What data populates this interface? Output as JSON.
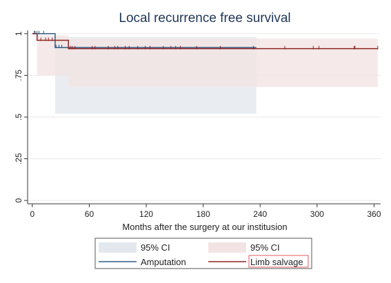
{
  "chart_data": {
    "type": "line",
    "title": "Local recurrence free survival",
    "xlabel": "Months after the surgery at our institusion",
    "ylabel": "",
    "xlim": [
      -5,
      367
    ],
    "ylim": [
      -0.02,
      1.02
    ],
    "x_ticks": [
      0,
      60,
      120,
      180,
      240,
      300,
      360
    ],
    "y_ticks": [
      0,
      0.25,
      0.5,
      0.75,
      1
    ],
    "y_tick_labels": [
      "0",
      ".25",
      ".5",
      ".75",
      "1"
    ],
    "grid": true,
    "legend_position": "bottom",
    "legend": [
      {
        "label": "95% CI",
        "kind": "band",
        "series": "Amputation"
      },
      {
        "label": "95% CI",
        "kind": "band",
        "series": "Limb salvage"
      },
      {
        "label": "Amputation",
        "kind": "line",
        "series": "Amputation"
      },
      {
        "label": "Limb salvage",
        "kind": "line",
        "series": "Limb salvage"
      }
    ],
    "series": [
      {
        "name": "Amputation",
        "color": "#2f5b86",
        "ci_color": "#e3e8ee",
        "steps": [
          [
            0,
            1
          ],
          [
            24,
            1
          ],
          [
            24,
            0.917
          ],
          [
            236,
            0.917
          ]
        ],
        "ci": [
          [
            0,
            1,
            1
          ],
          [
            24,
            1,
            1
          ],
          [
            24,
            0.52,
            0.98
          ],
          [
            236,
            0.52,
            0.98
          ]
        ],
        "censored": [
          2,
          5,
          7,
          12,
          25,
          28,
          31
        ]
      },
      {
        "name": "Limb salvage",
        "color": "#8f2323",
        "ci_color": "#f3e4e4",
        "steps": [
          [
            0,
            1
          ],
          [
            5,
            1
          ],
          [
            5,
            0.96
          ],
          [
            38,
            0.96
          ],
          [
            38,
            0.91
          ],
          [
            364,
            0.91
          ]
        ],
        "ci": [
          [
            0,
            1,
            1
          ],
          [
            5,
            1,
            1
          ],
          [
            5,
            0.75,
            0.99
          ],
          [
            38,
            0.75,
            0.99
          ],
          [
            38,
            0.68,
            0.97
          ],
          [
            364,
            0.68,
            0.97
          ]
        ],
        "censored": [
          3,
          9,
          14,
          17,
          21,
          40,
          42,
          45,
          63,
          66,
          80,
          87,
          90,
          98,
          102,
          111,
          119,
          124,
          138,
          146,
          151,
          156,
          173,
          198,
          233,
          266,
          296,
          302,
          339,
          340,
          364
        ]
      }
    ]
  }
}
